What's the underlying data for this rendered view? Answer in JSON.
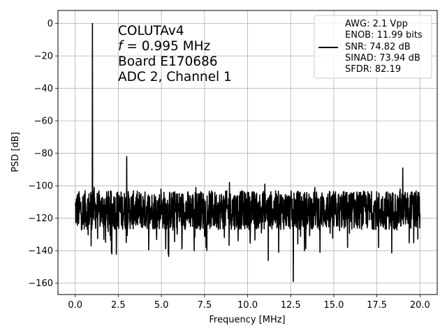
{
  "chart_data": {
    "type": "line",
    "xlabel": "Frequency [MHz]",
    "ylabel": "PSD [dB]",
    "xlim": [
      -1.0,
      21.0
    ],
    "ylim": [
      -167,
      8
    ],
    "xticks": [
      0.0,
      2.5,
      5.0,
      7.5,
      10.0,
      12.5,
      15.0,
      17.5,
      20.0
    ],
    "xtick_labels": [
      "0.0",
      "2.5",
      "5.0",
      "7.5",
      "10.0",
      "12.5",
      "15.0",
      "17.5",
      "20.0"
    ],
    "yticks": [
      0,
      -20,
      -40,
      -60,
      -80,
      -100,
      -120,
      -140,
      -160
    ],
    "ytick_labels": [
      "0",
      "−20",
      "−40",
      "−60",
      "−80",
      "−100",
      "−120",
      "−140",
      "−160"
    ],
    "grid": true,
    "annotation_lines": [
      "COLUTAv4",
      "f = 0.995 MHz",
      "Board E170686",
      "ADC 2, Channel 1"
    ],
    "legend": {
      "placement": "upper right",
      "lines": [
        "AWG: 2.1 Vpp",
        "ENOB: 11.99 bits",
        "SNR: 74.82 dB",
        "SINAD: 73.94 dB",
        "SFDR: 82.19"
      ]
    },
    "series": [
      {
        "color": "#000000",
        "noise_floor_db": -115,
        "noise_floor_range_db": [
          -128,
          -104
        ],
        "x_start": 0.0,
        "x_end": 20.0,
        "peaks": [
          {
            "x": 0.995,
            "y": 0
          },
          {
            "x": 2.99,
            "y": -82
          },
          {
            "x": 0.9,
            "y": -104
          },
          {
            "x": 1.1,
            "y": -101
          },
          {
            "x": 4.98,
            "y": -102
          },
          {
            "x": 7.0,
            "y": -101
          },
          {
            "x": 8.95,
            "y": -98
          },
          {
            "x": 11.0,
            "y": -99
          },
          {
            "x": 13.9,
            "y": -101
          },
          {
            "x": 19.0,
            "y": -89
          },
          {
            "x": 18.85,
            "y": -102
          },
          {
            "x": 19.9,
            "y": -104
          }
        ],
        "dips": [
          {
            "x": 0.92,
            "y": -137
          },
          {
            "x": 2.1,
            "y": -141
          },
          {
            "x": 5.4,
            "y": -142
          },
          {
            "x": 6.9,
            "y": -140
          },
          {
            "x": 11.2,
            "y": -146
          },
          {
            "x": 11.8,
            "y": -141
          },
          {
            "x": 12.65,
            "y": -159
          },
          {
            "x": 13.3,
            "y": -140
          },
          {
            "x": 14.2,
            "y": -141
          },
          {
            "x": 15.8,
            "y": -138
          },
          {
            "x": 17.6,
            "y": -138
          }
        ]
      }
    ]
  }
}
